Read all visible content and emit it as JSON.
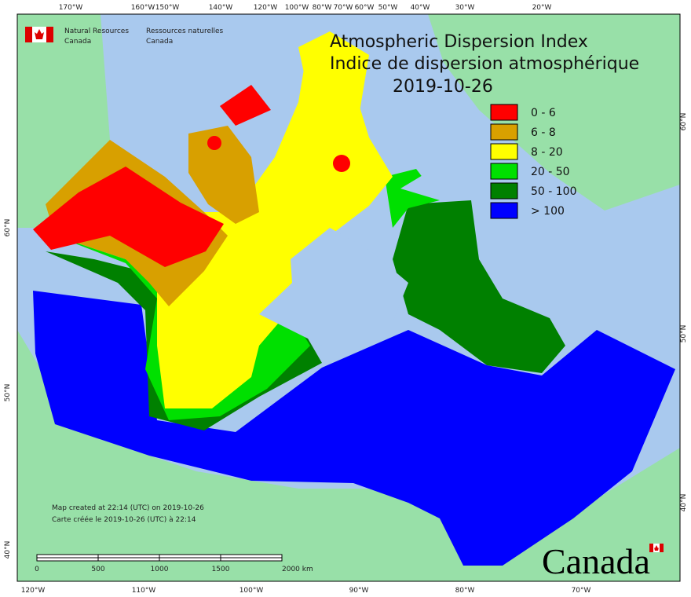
{
  "agency": {
    "en": [
      "Natural Resources",
      "Canada"
    ],
    "fr": [
      "Ressources naturelles",
      "Canada"
    ]
  },
  "title": {
    "en": "Atmospheric Dispersion Index",
    "fr": "Indice de dispersion atmosphérique",
    "date": "2019-10-26"
  },
  "legend": [
    {
      "label": "0 - 6",
      "color": "#ff0000"
    },
    {
      "label": "6 - 8",
      "color": "#d8a000"
    },
    {
      "label": "8 - 20",
      "color": "#ffff00"
    },
    {
      "label": "20 - 50",
      "color": "#00e000"
    },
    {
      "label": "50 - 100",
      "color": "#008000"
    },
    {
      "label": "> 100",
      "color": "#0000ff"
    }
  ],
  "longitudes_top": [
    "170°W",
    "160°W",
    "150°W",
    "140°W",
    "120°W",
    "100°W",
    "80°W",
    "70°W",
    "60°W",
    "50°W",
    "40°W",
    "30°W",
    "20°W"
  ],
  "longitudes_bottom": [
    "120°W",
    "110°W",
    "100°W",
    "90°W",
    "80°W",
    "70°W"
  ],
  "latitudes_left": [
    "60°N",
    "50°N",
    "40°N"
  ],
  "latitudes_right": [
    "60°N",
    "50°N",
    "40°N"
  ],
  "footer": [
    "Map created at 22:14 (UTC) on 2019-10-26",
    "Carte créée le 2019-10-26 (UTC) à 22:14"
  ],
  "scale": [
    "0",
    "500",
    "1000",
    "1500",
    "2000  km"
  ],
  "wordmark": "Canada"
}
